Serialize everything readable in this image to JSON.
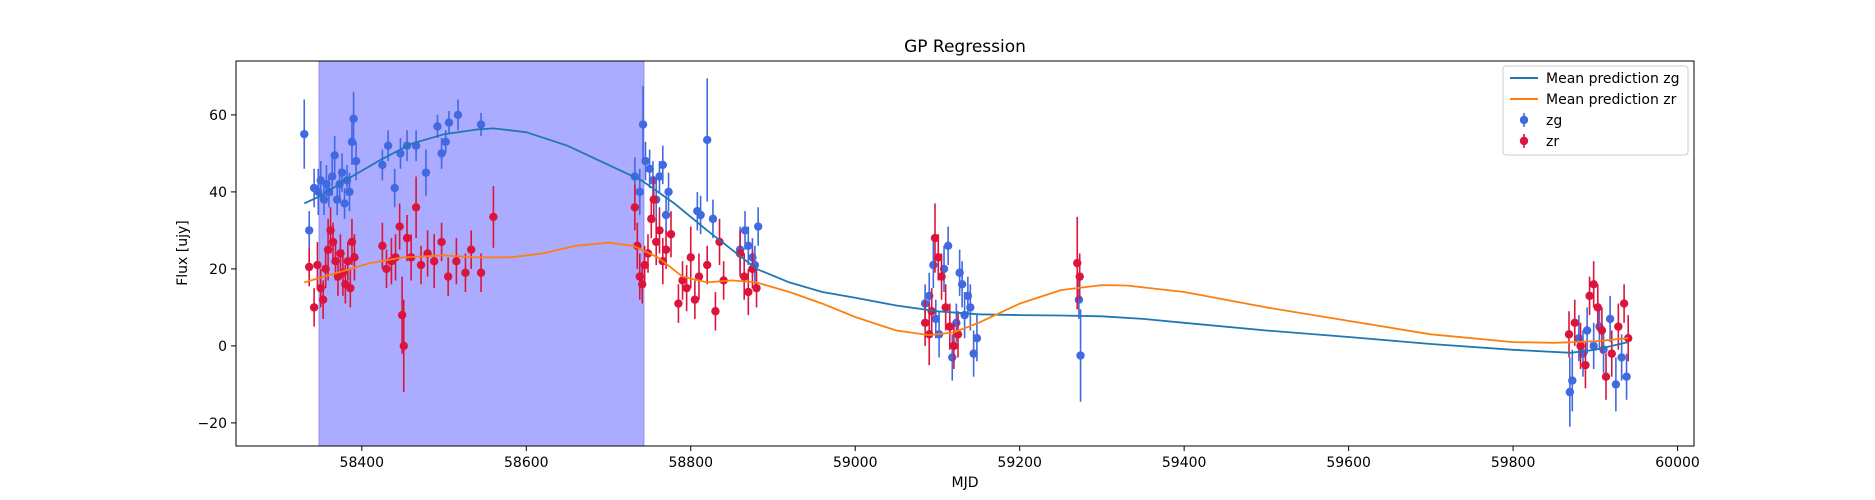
{
  "chart_data": {
    "type": "scatter",
    "title": "GP Regression",
    "xlabel": "MJD",
    "ylabel": "Flux [ujy]",
    "xlim": [
      58247,
      60020
    ],
    "ylim": [
      -26,
      74
    ],
    "xticks": [
      58400,
      58600,
      58800,
      59000,
      59200,
      59400,
      59600,
      59800,
      60000
    ],
    "yticks": [
      -20,
      0,
      20,
      40,
      60
    ],
    "grid": false,
    "legend_position": "top-right",
    "shaded_region": {
      "x_start": 58348,
      "x_end": 58743,
      "color": "#a6a6ff"
    },
    "series": [
      {
        "name": "zg",
        "kind": "errorbar",
        "color": "#4169e1",
        "points": [
          [
            58330,
            55,
            9
          ],
          [
            58336,
            30,
            5
          ],
          [
            58342,
            41,
            5
          ],
          [
            58347,
            40,
            6
          ],
          [
            58350,
            43,
            5
          ],
          [
            58354,
            38,
            4
          ],
          [
            58357,
            42,
            5
          ],
          [
            58360,
            40,
            4
          ],
          [
            58364,
            44,
            5
          ],
          [
            58367,
            49.5,
            5
          ],
          [
            58370,
            38,
            4
          ],
          [
            58373,
            42,
            4
          ],
          [
            58376,
            45,
            5
          ],
          [
            58379,
            37,
            4
          ],
          [
            58382,
            43,
            4
          ],
          [
            58385,
            40,
            5
          ],
          [
            58388,
            53,
            6
          ],
          [
            58390,
            59,
            7
          ],
          [
            58393,
            48,
            5
          ],
          [
            58425,
            47,
            4
          ],
          [
            58432,
            52,
            4
          ],
          [
            58440,
            41,
            5
          ],
          [
            58447,
            50,
            4
          ],
          [
            58455,
            52,
            4
          ],
          [
            58466,
            52,
            4
          ],
          [
            58478,
            45,
            6
          ],
          [
            58492,
            57,
            3
          ],
          [
            58497,
            50,
            4
          ],
          [
            58502,
            53,
            3
          ],
          [
            58506,
            58,
            3
          ],
          [
            58517,
            60,
            4
          ],
          [
            58545,
            57.5,
            3
          ],
          [
            58732,
            44,
            5
          ],
          [
            58738,
            40,
            6
          ],
          [
            58742,
            57.5,
            10
          ],
          [
            58745,
            48,
            5
          ],
          [
            58750,
            46,
            5
          ],
          [
            58754,
            43,
            5
          ],
          [
            58758,
            38,
            5
          ],
          [
            58762,
            44,
            4
          ],
          [
            58766,
            47,
            5
          ],
          [
            58770,
            34,
            5
          ],
          [
            58773,
            40,
            5
          ],
          [
            58808,
            35,
            5
          ],
          [
            58812,
            34,
            5
          ],
          [
            58820,
            53.5,
            16
          ],
          [
            58827,
            33,
            5
          ],
          [
            58860,
            25,
            6
          ],
          [
            58866,
            30,
            5
          ],
          [
            58870,
            26,
            5
          ],
          [
            58875,
            23,
            5
          ],
          [
            58878,
            21,
            5
          ],
          [
            58882,
            31,
            5
          ],
          [
            59085,
            11,
            5
          ],
          [
            59090,
            13,
            6
          ],
          [
            59095,
            21,
            6
          ],
          [
            59098,
            7,
            5
          ],
          [
            59102,
            3,
            6
          ],
          [
            59108,
            20,
            6
          ],
          [
            59113,
            26,
            5
          ],
          [
            59118,
            -3,
            6
          ],
          [
            59123,
            6,
            5
          ],
          [
            59127,
            19,
            6
          ],
          [
            59130,
            16,
            6
          ],
          [
            59133,
            8,
            6
          ],
          [
            59137,
            13,
            5
          ],
          [
            59140,
            10,
            6
          ],
          [
            59144,
            -2,
            6
          ],
          [
            59148,
            2,
            6
          ],
          [
            59272,
            12,
            5
          ],
          [
            59274,
            -2.5,
            12
          ],
          [
            59869,
            -12,
            9
          ],
          [
            59872,
            -9,
            8
          ],
          [
            59880,
            2,
            6
          ],
          [
            59885,
            -2,
            6
          ],
          [
            59890,
            4,
            6
          ],
          [
            59898,
            0,
            6
          ],
          [
            59905,
            5,
            6
          ],
          [
            59910,
            -1,
            6
          ],
          [
            59918,
            7,
            6
          ],
          [
            59925,
            -10,
            7
          ],
          [
            59932,
            -3,
            6
          ],
          [
            59938,
            -8,
            6
          ]
        ]
      },
      {
        "name": "zr",
        "kind": "errorbar",
        "color": "#dc143c",
        "points": [
          [
            58336,
            20.5,
            5
          ],
          [
            58342,
            10,
            5
          ],
          [
            58346,
            21,
            6
          ],
          [
            58350,
            15,
            5
          ],
          [
            58353,
            12,
            5
          ],
          [
            58356,
            20,
            5
          ],
          [
            58359,
            25,
            8
          ],
          [
            58362,
            30,
            6
          ],
          [
            58365,
            27,
            5
          ],
          [
            58368,
            22,
            5
          ],
          [
            58371,
            18,
            5
          ],
          [
            58374,
            24,
            5
          ],
          [
            58377,
            19,
            6
          ],
          [
            58380,
            16,
            5
          ],
          [
            58383,
            22,
            5
          ],
          [
            58386,
            15,
            5
          ],
          [
            58388,
            27,
            6
          ],
          [
            58391,
            23,
            6
          ],
          [
            58425,
            26,
            6
          ],
          [
            58430,
            20,
            5
          ],
          [
            58436,
            22,
            6
          ],
          [
            58441,
            23,
            6
          ],
          [
            58446,
            31,
            6
          ],
          [
            58449,
            8,
            10
          ],
          [
            58451,
            0,
            12
          ],
          [
            58455,
            28,
            6
          ],
          [
            58460,
            23,
            6
          ],
          [
            58466,
            36,
            8
          ],
          [
            58472,
            21,
            5
          ],
          [
            58480,
            24,
            6
          ],
          [
            58488,
            22,
            7
          ],
          [
            58497,
            27,
            5
          ],
          [
            58505,
            18,
            5
          ],
          [
            58515,
            22,
            6
          ],
          [
            58526,
            19,
            5
          ],
          [
            58533,
            25,
            5
          ],
          [
            58545,
            19,
            5
          ],
          [
            58560,
            33.5,
            8
          ],
          [
            58732,
            36,
            6
          ],
          [
            58735,
            26,
            6
          ],
          [
            58738,
            18,
            6
          ],
          [
            58741,
            16,
            5
          ],
          [
            58744,
            21,
            5
          ],
          [
            58748,
            24,
            5
          ],
          [
            58752,
            33,
            5
          ],
          [
            58755,
            38,
            6
          ],
          [
            58758,
            27,
            6
          ],
          [
            58762,
            30,
            6
          ],
          [
            58766,
            22,
            6
          ],
          [
            58770,
            25,
            5
          ],
          [
            58776,
            29,
            6
          ],
          [
            58785,
            11,
            5
          ],
          [
            58790,
            17,
            5
          ],
          [
            58795,
            15,
            6
          ],
          [
            58800,
            23,
            8
          ],
          [
            58805,
            12,
            5
          ],
          [
            58810,
            18,
            6
          ],
          [
            58820,
            21,
            5
          ],
          [
            58830,
            9,
            5
          ],
          [
            58835,
            27,
            6
          ],
          [
            58840,
            17,
            5
          ],
          [
            58860,
            24,
            6
          ],
          [
            58865,
            18,
            6
          ],
          [
            58870,
            14,
            6
          ],
          [
            58875,
            20,
            5
          ],
          [
            58880,
            15,
            5
          ],
          [
            59085,
            6,
            6
          ],
          [
            59090,
            3,
            8
          ],
          [
            59093,
            9,
            6
          ],
          [
            59097,
            28,
            9
          ],
          [
            59101,
            23,
            6
          ],
          [
            59105,
            18,
            6
          ],
          [
            59110,
            10,
            6
          ],
          [
            59115,
            5,
            6
          ],
          [
            59120,
            0,
            6
          ],
          [
            59125,
            3,
            6
          ],
          [
            59270,
            21.5,
            12
          ],
          [
            59273,
            18,
            6
          ],
          [
            59868,
            3,
            6
          ],
          [
            59875,
            6,
            6
          ],
          [
            59882,
            0,
            6
          ],
          [
            59888,
            -5,
            6
          ],
          [
            59893,
            13,
            5
          ],
          [
            59898,
            16,
            6
          ],
          [
            59903,
            10,
            6
          ],
          [
            59908,
            4,
            6
          ],
          [
            59913,
            -8,
            6
          ],
          [
            59920,
            -2,
            6
          ],
          [
            59928,
            5,
            6
          ],
          [
            59935,
            11,
            5
          ],
          [
            59940,
            2,
            6
          ]
        ]
      },
      {
        "name": "Mean prediction zg",
        "kind": "line",
        "color": "#1f77b4",
        "points": [
          [
            58330,
            37
          ],
          [
            58350,
            39
          ],
          [
            58380,
            43
          ],
          [
            58420,
            48
          ],
          [
            58460,
            52.5
          ],
          [
            58500,
            55
          ],
          [
            58540,
            56.2
          ],
          [
            58560,
            56.5
          ],
          [
            58600,
            55.5
          ],
          [
            58650,
            52
          ],
          [
            58700,
            47
          ],
          [
            58740,
            43
          ],
          [
            58780,
            37
          ],
          [
            58820,
            30
          ],
          [
            58850,
            25
          ],
          [
            58880,
            20
          ],
          [
            58920,
            16.5
          ],
          [
            58960,
            14
          ],
          [
            59000,
            12.5
          ],
          [
            59050,
            10.5
          ],
          [
            59100,
            9
          ],
          [
            59150,
            8.2
          ],
          [
            59200,
            8
          ],
          [
            59250,
            7.9
          ],
          [
            59300,
            7.7
          ],
          [
            59350,
            7
          ],
          [
            59400,
            6
          ],
          [
            59500,
            4
          ],
          [
            59600,
            2.3
          ],
          [
            59700,
            0.5
          ],
          [
            59800,
            -1
          ],
          [
            59870,
            -1.8
          ],
          [
            59900,
            -1
          ],
          [
            59930,
            0.5
          ],
          [
            59940,
            1
          ]
        ]
      },
      {
        "name": "Mean prediction zr",
        "kind": "line",
        "color": "#ff7f0e",
        "points": [
          [
            58330,
            16.5
          ],
          [
            58370,
            19
          ],
          [
            58410,
            21.5
          ],
          [
            58450,
            23
          ],
          [
            58500,
            23.5
          ],
          [
            58540,
            23
          ],
          [
            58580,
            23
          ],
          [
            58620,
            24
          ],
          [
            58660,
            26
          ],
          [
            58700,
            26.8
          ],
          [
            58730,
            26
          ],
          [
            58760,
            23
          ],
          [
            58790,
            18
          ],
          [
            58820,
            16.5
          ],
          [
            58850,
            17
          ],
          [
            58880,
            16.5
          ],
          [
            58920,
            14
          ],
          [
            58960,
            11
          ],
          [
            59000,
            7.5
          ],
          [
            59050,
            4
          ],
          [
            59090,
            2.8
          ],
          [
            59120,
            3.5
          ],
          [
            59150,
            6
          ],
          [
            59200,
            11
          ],
          [
            59250,
            14.5
          ],
          [
            59300,
            15.8
          ],
          [
            59330,
            15.7
          ],
          [
            59400,
            14
          ],
          [
            59500,
            10
          ],
          [
            59600,
            6.5
          ],
          [
            59700,
            3
          ],
          [
            59800,
            1
          ],
          [
            59850,
            0.8
          ],
          [
            59900,
            1.2
          ],
          [
            59940,
            2
          ]
        ]
      }
    ]
  }
}
